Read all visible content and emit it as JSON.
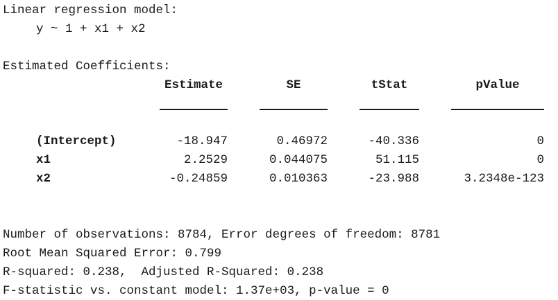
{
  "model": {
    "title": "Linear regression model:",
    "formula": "y ~ 1 + x1 + x2"
  },
  "coefficients": {
    "heading": "Estimated Coefficients:",
    "columns": [
      "Estimate",
      "SE",
      "tStat",
      "pValue"
    ],
    "rows": [
      {
        "name": "(Intercept)",
        "values": [
          "-18.947",
          "0.46972",
          "-40.336",
          "0"
        ]
      },
      {
        "name": "x1",
        "values": [
          "2.2529",
          "0.044075",
          "51.115",
          "0"
        ]
      },
      {
        "name": "x2",
        "values": [
          "-0.24859",
          "0.010363",
          "-23.988",
          "3.2348e-123"
        ]
      }
    ]
  },
  "summary": {
    "line1": "Number of observations: 8784, Error degrees of freedom: 8781",
    "line2": "Root Mean Squared Error: 0.799",
    "line3": "R-squared: 0.238,  Adjusted R-Squared: 0.238",
    "line4": "F-statistic vs. constant model: 1.37e+03, p-value = 0"
  }
}
